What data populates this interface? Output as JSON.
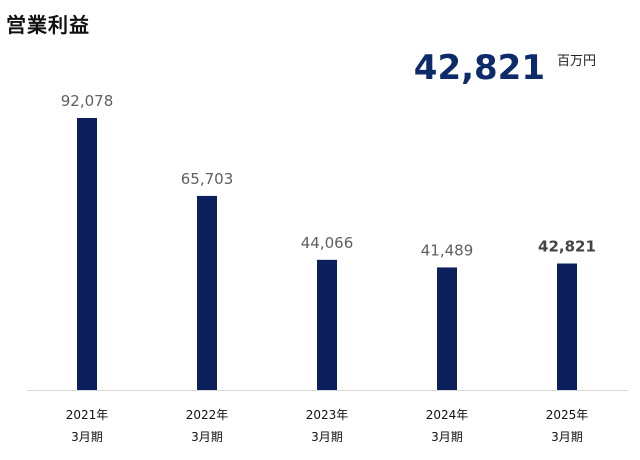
{
  "title": "営業利益",
  "headline": {
    "value": "42,821",
    "unit": "百万円"
  },
  "colors": {
    "bar": "#0a1f5c",
    "value_label": "#5f5f5f",
    "value_label_last": "#444444",
    "axis": "#d9d9d9"
  },
  "chart_data": {
    "type": "bar",
    "categories": [
      {
        "year": "2021年",
        "period": "3月期"
      },
      {
        "year": "2022年",
        "period": "3月期"
      },
      {
        "year": "2023年",
        "period": "3月期"
      },
      {
        "year": "2024年",
        "period": "3月期"
      },
      {
        "year": "2025年",
        "period": "3月期"
      }
    ],
    "values": [
      92078,
      65703,
      44066,
      41489,
      42821
    ],
    "value_labels": [
      "92,078",
      "65,703",
      "44,066",
      "41,489",
      "42,821"
    ],
    "ylim": [
      0,
      92078
    ],
    "grid": false,
    "legend": "none"
  }
}
